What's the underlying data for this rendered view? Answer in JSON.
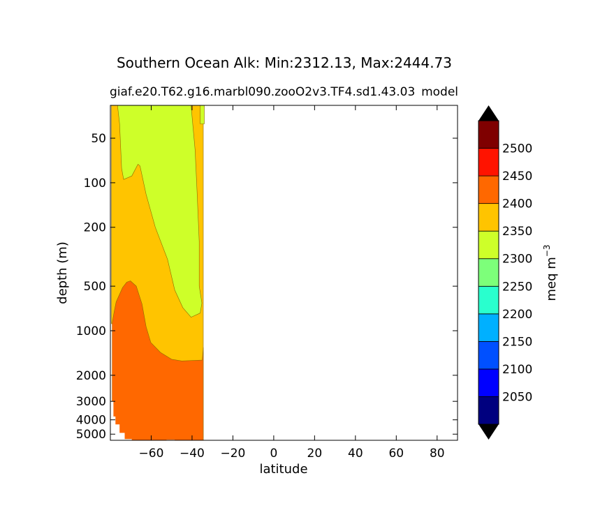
{
  "chart_data": {
    "type": "contourf",
    "title": "Southern Ocean Alk: Min:2312.13, Max:2444.73",
    "subtitle_left": "giaf.e20.T62.g16.marbl090.zooO2v3.TF4.sd1.43.03",
    "subtitle_right": "model",
    "xlabel": "latitude",
    "ylabel": "depth (m)",
    "xlim": [
      -80,
      90
    ],
    "ylim": [
      5500,
      30
    ],
    "yscale": "log",
    "xticks": [
      -60,
      -40,
      -20,
      0,
      20,
      40,
      60,
      80
    ],
    "xtick_labels": [
      "−60",
      "−40",
      "−20",
      "0",
      "20",
      "40",
      "60",
      "80"
    ],
    "yticks": [
      50,
      100,
      200,
      500,
      1000,
      2000,
      3000,
      4000,
      5000
    ],
    "ytick_labels": [
      "50",
      "100",
      "200",
      "500",
      "1000",
      "2000",
      "3000",
      "4000",
      "5000"
    ],
    "colorbar": {
      "label": "meq m⁻³",
      "label_base": "meq m",
      "label_exp": "−3",
      "extend": "both",
      "levels": [
        2000,
        2050,
        2100,
        2150,
        2200,
        2250,
        2300,
        2350,
        2400,
        2450,
        2500,
        2550
      ],
      "tick_labels": [
        "2050",
        "2100",
        "2150",
        "2200",
        "2250",
        "2300",
        "2350",
        "2400",
        "2450",
        "2500"
      ],
      "colors": [
        "#00007f",
        "#0000ff",
        "#0050ff",
        "#00b0ff",
        "#29ffce",
        "#7dff7a",
        "#ceff29",
        "#ffc400",
        "#ff6800",
        "#ff1300",
        "#7f0000"
      ],
      "under_color": "#000000",
      "over_color": "#000000"
    },
    "regions": [
      {
        "name": "band-2350-2400",
        "level": "2350-2400",
        "color": "#ffc400",
        "boundary": [
          [
            -79.5,
            30
          ],
          [
            -34.5,
            30
          ],
          [
            -34.5,
            5500
          ],
          [
            -79.5,
            5500
          ]
        ]
      },
      {
        "name": "band-2300-2350",
        "level": "2300-2350",
        "color": "#ceff29",
        "boundary": [
          [
            -77.2,
            30
          ],
          [
            -40.5,
            30
          ],
          [
            -38.5,
            60
          ],
          [
            -37.5,
            120
          ],
          [
            -36.5,
            250
          ],
          [
            -36.5,
            500
          ],
          [
            -35.2,
            650
          ],
          [
            -36.0,
            760
          ],
          [
            -40.5,
            810
          ],
          [
            -44.5,
            700
          ],
          [
            -48.5,
            530
          ],
          [
            -52,
            330
          ],
          [
            -58,
            200
          ],
          [
            -62.5,
            120
          ],
          [
            -65.5,
            77
          ],
          [
            -66.5,
            75
          ],
          [
            -69.5,
            90
          ],
          [
            -73.5,
            95
          ],
          [
            -74.5,
            80
          ],
          [
            -75.5,
            40
          ],
          [
            -76.5,
            30
          ]
        ]
      },
      {
        "name": "band-2300-2350-edge",
        "level": "2300-2350",
        "color": "#ceff29",
        "boundary": [
          [
            -36,
            30
          ],
          [
            -34,
            30
          ],
          [
            -34,
            40
          ],
          [
            -36,
            40
          ]
        ]
      },
      {
        "name": "band-2400-2450",
        "level": "2400-2450",
        "color": "#ff6800",
        "boundary": [
          [
            -79.2,
            900
          ],
          [
            -78.2,
            750
          ],
          [
            -77.2,
            640
          ],
          [
            -74,
            510
          ],
          [
            -72,
            470
          ],
          [
            -70.2,
            460
          ],
          [
            -67.3,
            500
          ],
          [
            -64.5,
            660
          ],
          [
            -62.5,
            940
          ],
          [
            -60.2,
            1200
          ],
          [
            -55.5,
            1400
          ],
          [
            -50,
            1560
          ],
          [
            -45,
            1600
          ],
          [
            -35,
            1580
          ],
          [
            -34.5,
            1300
          ],
          [
            -34.5,
            5500
          ],
          [
            -79.2,
            5500
          ]
        ]
      }
    ],
    "mask": {
      "color": "#ffffff",
      "polygon": [
        [
          -80,
          900
        ],
        [
          -79.2,
          900
        ],
        [
          -79.2,
          3000
        ],
        [
          -78.5,
          3000
        ],
        [
          -78.5,
          3800
        ],
        [
          -77.5,
          3800
        ],
        [
          -77.5,
          4300
        ],
        [
          -75.5,
          4300
        ],
        [
          -75.5,
          4900
        ],
        [
          -73,
          4900
        ],
        [
          -73,
          5400
        ],
        [
          -69.5,
          5400
        ],
        [
          -69.5,
          5600
        ],
        [
          -60.5,
          5600
        ],
        [
          -60.5,
          5500
        ],
        [
          -80,
          5500
        ]
      ]
    },
    "mask_shelf": {
      "color": "#ffffff",
      "polygon": [
        [
          -52.5,
          5450
        ],
        [
          -48.5,
          5450
        ],
        [
          -48.5,
          5600
        ],
        [
          -52.5,
          5600
        ]
      ]
    }
  }
}
